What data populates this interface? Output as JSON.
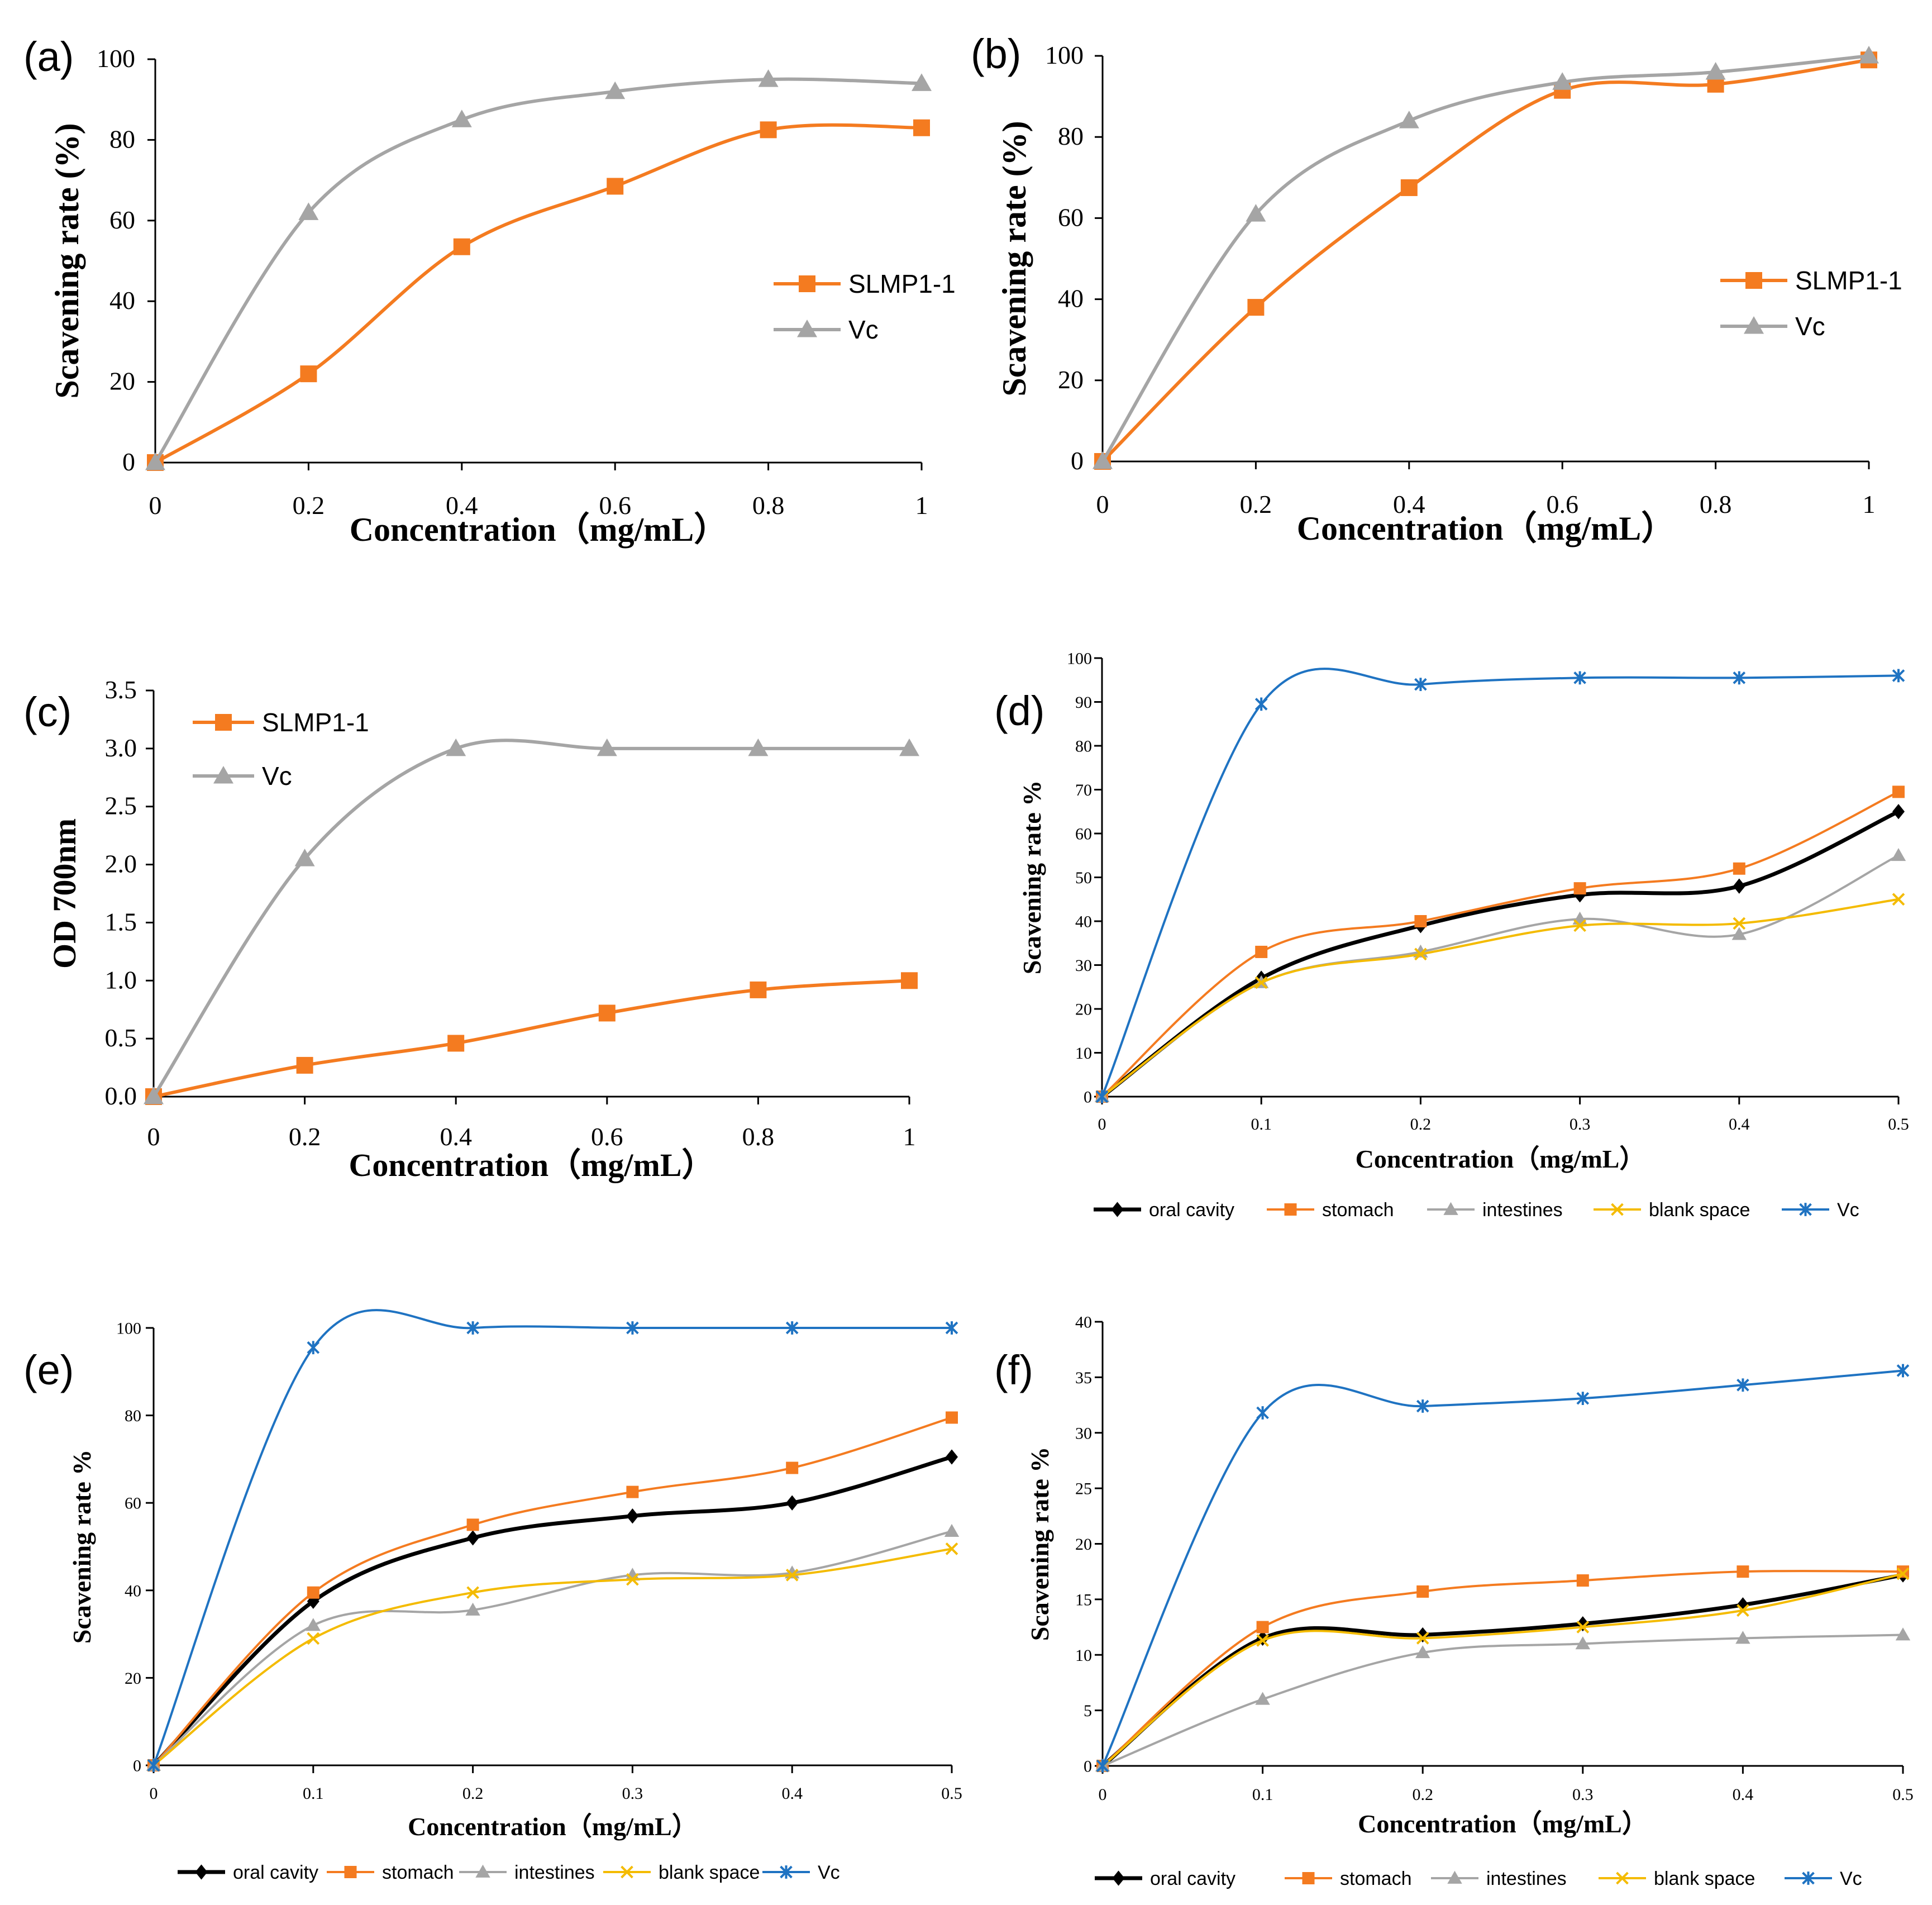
{
  "colors": {
    "orange": "#f47b20",
    "gray": "#a5a5a5",
    "blue": "#1f73c2",
    "black": "#000000",
    "yellow": "#f4bb00",
    "errorbar": "#29a3d8"
  },
  "chart_data": [
    {
      "panel": "(a)",
      "type": "line",
      "x": [
        0,
        0.2,
        0.4,
        0.6,
        0.8,
        1
      ],
      "xticks": [
        "0",
        "0.2",
        "0.4",
        "0.6",
        "0.8",
        "1"
      ],
      "xlim": [
        0,
        1
      ],
      "ylim": [
        0,
        100
      ],
      "yticks": [
        "0",
        "20",
        "40",
        "60",
        "80",
        "100"
      ],
      "xlabel": "Concentration（mg/mL）",
      "ylabel": "Scavening rate (%)",
      "legend_position": "right-middle",
      "series": [
        {
          "name": "SLMP1-1",
          "color": "orange",
          "marker": "square",
          "values": [
            0,
            22,
            53.5,
            68.5,
            82.5,
            83
          ]
        },
        {
          "name": "Vc",
          "color": "gray",
          "marker": "triangle",
          "values": [
            0,
            62,
            85,
            92,
            95,
            94
          ]
        }
      ]
    },
    {
      "panel": "(b)",
      "type": "line",
      "x": [
        0,
        0.2,
        0.4,
        0.6,
        0.8,
        1
      ],
      "xticks": [
        "0",
        "0.2",
        "0.4",
        "0.6",
        "0.8",
        "1"
      ],
      "xlim": [
        0,
        1
      ],
      "ylim": [
        0,
        100
      ],
      "yticks": [
        "0",
        "20",
        "40",
        "60",
        "80",
        "100"
      ],
      "xlabel": "Concentration（mg/mL）",
      "ylabel": "Scavening rate (%)",
      "legend_position": "right-middle",
      "series": [
        {
          "name": "SLMP1-1",
          "color": "orange",
          "marker": "square",
          "values": [
            0,
            38,
            67.5,
            91.5,
            93,
            99
          ]
        },
        {
          "name": "Vc",
          "color": "gray",
          "marker": "triangle",
          "values": [
            0,
            61,
            84,
            93.5,
            96,
            100
          ]
        }
      ]
    },
    {
      "panel": "(c)",
      "type": "line",
      "x": [
        0,
        0.2,
        0.4,
        0.6,
        0.8,
        1
      ],
      "xticks": [
        "0",
        "0.2",
        "0.4",
        "0.6",
        "0.8",
        "1"
      ],
      "xlim": [
        0,
        1
      ],
      "ylim": [
        0,
        3.5
      ],
      "yticks": [
        "0.0",
        "0.5",
        "1.0",
        "1.5",
        "2.0",
        "2.5",
        "3.0",
        "3.5"
      ],
      "xlabel": "Concentration（mg/mL）",
      "ylabel": "OD 700nm",
      "legend_position": "top-left",
      "series": [
        {
          "name": "SLMP1-1",
          "color": "orange",
          "marker": "square",
          "values": [
            0,
            0.27,
            0.46,
            0.72,
            0.92,
            1.0
          ]
        },
        {
          "name": "Vc",
          "color": "gray",
          "marker": "triangle",
          "values": [
            0,
            2.05,
            3.0,
            3.0,
            3.0,
            3.0
          ]
        }
      ]
    },
    {
      "panel": "(d)",
      "type": "line",
      "x": [
        0,
        0.1,
        0.2,
        0.3,
        0.4,
        0.5
      ],
      "xticks": [
        "0",
        "0.1",
        "0.2",
        "0.3",
        "0.4",
        "0.5"
      ],
      "xlim": [
        0,
        0.5
      ],
      "ylim": [
        0,
        100
      ],
      "yticks": [
        "0",
        "10",
        "20",
        "30",
        "40",
        "50",
        "60",
        "70",
        "80",
        "90",
        "100"
      ],
      "xlabel": "Concentration（mg/mL）",
      "ylabel": "Scavening rate %",
      "legend_position": "bottom",
      "series": [
        {
          "name": "oral cavity",
          "color": "black",
          "marker": "diamond",
          "values": [
            0,
            27,
            39,
            46,
            48,
            65
          ]
        },
        {
          "name": "stomach",
          "color": "orange",
          "marker": "square",
          "values": [
            0,
            33,
            40,
            47.5,
            52,
            69.5
          ]
        },
        {
          "name": "intestines",
          "color": "gray",
          "marker": "triangle",
          "values": [
            0,
            26,
            33,
            40.5,
            37,
            55
          ]
        },
        {
          "name": "blank space",
          "color": "yellow",
          "marker": "x",
          "values": [
            0,
            26,
            32.5,
            39,
            39.5,
            45
          ]
        },
        {
          "name": "Vc",
          "color": "blue",
          "marker": "star",
          "values": [
            0,
            89.5,
            94,
            95.5,
            95.5,
            96
          ]
        }
      ]
    },
    {
      "panel": "(e)",
      "type": "line",
      "x": [
        0,
        0.1,
        0.2,
        0.3,
        0.4,
        0.5
      ],
      "xticks": [
        "0",
        "0.1",
        "0.2",
        "0.3",
        "0.4",
        "0.5"
      ],
      "xlim": [
        0,
        0.5
      ],
      "ylim": [
        0,
        100
      ],
      "yticks": [
        "0",
        "20",
        "40",
        "60",
        "80",
        "100"
      ],
      "xlabel": "Concentration（mg/mL）",
      "ylabel": "Scavening rate %",
      "legend_position": "bottom",
      "series": [
        {
          "name": "oral cavity",
          "color": "black",
          "marker": "diamond",
          "values": [
            0,
            37.5,
            52,
            57,
            60,
            70.5
          ]
        },
        {
          "name": "stomach",
          "color": "orange",
          "marker": "square",
          "values": [
            0,
            39.5,
            55,
            62.5,
            68,
            79.5
          ]
        },
        {
          "name": "intestines",
          "color": "gray",
          "marker": "triangle",
          "values": [
            0,
            32,
            35.5,
            43.5,
            44,
            53.5
          ]
        },
        {
          "name": "blank space",
          "color": "yellow",
          "marker": "x",
          "values": [
            0,
            29,
            39.5,
            42.5,
            43.5,
            49.5
          ]
        },
        {
          "name": "Vc",
          "color": "blue",
          "marker": "star",
          "values": [
            0,
            95.5,
            100,
            100,
            100,
            100
          ]
        }
      ]
    },
    {
      "panel": "(f)",
      "type": "line",
      "x": [
        0,
        0.1,
        0.2,
        0.3,
        0.4,
        0.5
      ],
      "xticks": [
        "0",
        "0.1",
        "0.2",
        "0.3",
        "0.4",
        "0.5"
      ],
      "xlim": [
        0,
        0.5
      ],
      "ylim": [
        0,
        40
      ],
      "yticks": [
        "0",
        "5",
        "10",
        "15",
        "20",
        "25",
        "30",
        "35",
        "40"
      ],
      "xlabel": "Concentration（mg/mL）",
      "ylabel": "Scavening rate %",
      "legend_position": "bottom",
      "series": [
        {
          "name": "oral cavity",
          "color": "black",
          "marker": "diamond",
          "values": [
            0,
            11.5,
            11.8,
            12.8,
            14.5,
            17.2
          ]
        },
        {
          "name": "stomach",
          "color": "orange",
          "marker": "square",
          "values": [
            0,
            12.5,
            15.7,
            16.7,
            17.5,
            17.5
          ]
        },
        {
          "name": "intestines",
          "color": "gray",
          "marker": "triangle",
          "values": [
            0,
            6,
            10.2,
            11,
            11.5,
            11.8
          ]
        },
        {
          "name": "blank space",
          "color": "yellow",
          "marker": "x",
          "values": [
            0,
            11.3,
            11.5,
            12.5,
            14,
            17.3
          ]
        },
        {
          "name": "Vc",
          "color": "blue",
          "marker": "star",
          "values": [
            0,
            31.8,
            32.4,
            33.1,
            34.3,
            35.6
          ]
        }
      ]
    }
  ]
}
